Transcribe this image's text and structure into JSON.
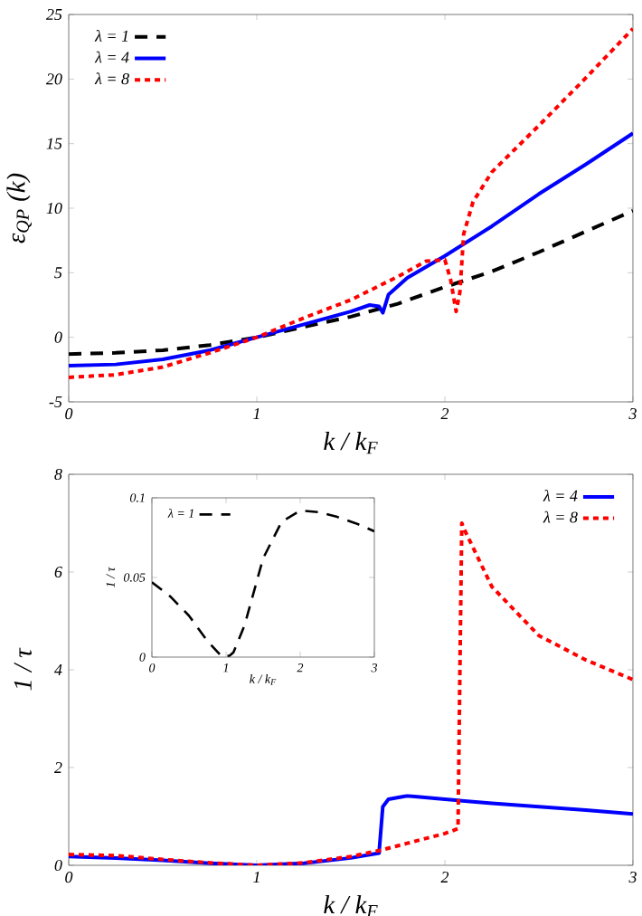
{
  "chart_data": [
    {
      "type": "line",
      "xlabel": "k / k$_{F}$",
      "ylabel": "ε$_{QP}$ (k)",
      "xlim": [
        0,
        3
      ],
      "ylim": [
        -5,
        25
      ],
      "xticks": [
        0,
        1,
        2,
        3
      ],
      "yticks": [
        -5,
        0,
        5,
        10,
        15,
        20,
        25
      ],
      "legend": "top left",
      "series": [
        {
          "name": "λ = 1",
          "color": "#000000",
          "line_style": "dashed",
          "x": [
            0,
            0.25,
            0.5,
            0.75,
            1,
            1.25,
            1.5,
            1.75,
            2,
            2.25,
            2.5,
            2.75,
            3
          ],
          "values": [
            -1.3,
            -1.2,
            -1.0,
            -0.6,
            0,
            0.8,
            1.6,
            2.6,
            3.9,
            5.1,
            6.6,
            8.2,
            9.8
          ]
        },
        {
          "name": "λ = 4",
          "color": "#0000ff",
          "line_style": "solid",
          "x": [
            0,
            0.25,
            0.5,
            0.75,
            1,
            1.25,
            1.5,
            1.6,
            1.65,
            1.67,
            1.7,
            1.8,
            2,
            2.25,
            2.5,
            2.75,
            3
          ],
          "values": [
            -2.2,
            -2.1,
            -1.7,
            -1.0,
            0,
            1.0,
            2.0,
            2.5,
            2.4,
            1.9,
            3.3,
            4.6,
            6.3,
            8.6,
            11.1,
            13.4,
            15.8
          ]
        },
        {
          "name": "λ = 8",
          "color": "#ff0000",
          "line_style": "dotted",
          "x": [
            0,
            0.25,
            0.5,
            0.75,
            1,
            1.25,
            1.5,
            1.75,
            1.9,
            2.0,
            2.03,
            2.06,
            2.08,
            2.1,
            2.15,
            2.25,
            2.5,
            2.75,
            3
          ],
          "values": [
            -3.1,
            -2.9,
            -2.3,
            -1.2,
            0,
            1.5,
            2.9,
            4.7,
            5.9,
            6.0,
            4.5,
            2.0,
            3.5,
            8.0,
            10.5,
            12.8,
            16.4,
            20.1,
            23.9
          ]
        }
      ]
    },
    {
      "type": "line",
      "xlabel": "k / k$_{F}$",
      "ylabel": "1 / τ",
      "xlim": [
        0,
        3
      ],
      "ylim": [
        0,
        8
      ],
      "xticks": [
        0,
        1,
        2,
        3
      ],
      "yticks": [
        0,
        2,
        4,
        6,
        8
      ],
      "legend": "top right",
      "series": [
        {
          "name": "λ = 4",
          "color": "#0000ff",
          "line_style": "solid",
          "x": [
            0,
            0.25,
            0.5,
            0.75,
            1,
            1.25,
            1.5,
            1.65,
            1.67,
            1.7,
            1.8,
            2,
            2.25,
            2.5,
            2.75,
            3
          ],
          "values": [
            0.18,
            0.15,
            0.1,
            0.04,
            0,
            0.04,
            0.15,
            0.25,
            1.2,
            1.35,
            1.42,
            1.35,
            1.27,
            1.2,
            1.13,
            1.05
          ]
        },
        {
          "name": "λ = 8",
          "color": "#ff0000",
          "line_style": "dotted",
          "x": [
            0,
            0.25,
            0.5,
            0.75,
            1,
            1.25,
            1.5,
            1.65,
            1.8,
            2.0,
            2.07,
            2.08,
            2.09,
            2.1,
            2.25,
            2.5,
            2.75,
            3
          ],
          "values": [
            0.22,
            0.2,
            0.12,
            0.05,
            0,
            0.05,
            0.18,
            0.3,
            0.45,
            0.65,
            0.75,
            4.0,
            7.0,
            6.9,
            5.7,
            4.7,
            4.2,
            3.8
          ]
        }
      ]
    },
    {
      "type": "line",
      "xlabel": "k / k$_{F}$",
      "ylabel": "1 / τ",
      "xlim": [
        0,
        3
      ],
      "ylim": [
        0,
        0.1
      ],
      "xticks": [
        0,
        1,
        2,
        3
      ],
      "yticks": [
        0,
        0.05,
        0.1
      ],
      "legend": "top left",
      "series": [
        {
          "name": "λ = 1",
          "color": "#000000",
          "line_style": "dashed",
          "x": [
            0,
            0.25,
            0.5,
            0.75,
            0.95,
            1.05,
            1.1,
            1.25,
            1.5,
            1.75,
            2,
            2.25,
            2.5,
            2.75,
            3
          ],
          "values": [
            0.047,
            0.038,
            0.026,
            0.01,
            0,
            0.001,
            0.003,
            0.02,
            0.062,
            0.085,
            0.092,
            0.091,
            0.088,
            0.084,
            0.079
          ]
        }
      ]
    }
  ]
}
